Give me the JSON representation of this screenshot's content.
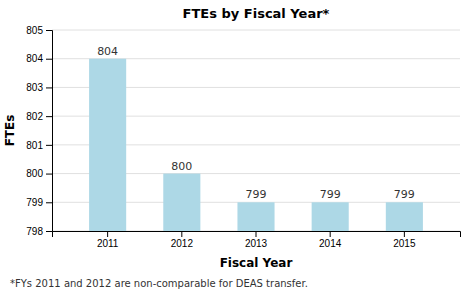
{
  "chart_data": {
    "type": "bar",
    "title": "FTEs by Fiscal Year*",
    "xlabel": "Fiscal Year",
    "ylabel": "FTEs",
    "categories": [
      "2011",
      "2012",
      "2013",
      "2014",
      "2015"
    ],
    "values": [
      804,
      800,
      799,
      799,
      799
    ],
    "color": "#add8e6",
    "ylim": [
      798,
      805
    ],
    "yticks": [
      798,
      799,
      800,
      801,
      802,
      803,
      804,
      805
    ],
    "grid": true,
    "data_labels": true,
    "footnote": "*FYs 2011 and 2012 are non-comparable for DEAS transfer."
  }
}
